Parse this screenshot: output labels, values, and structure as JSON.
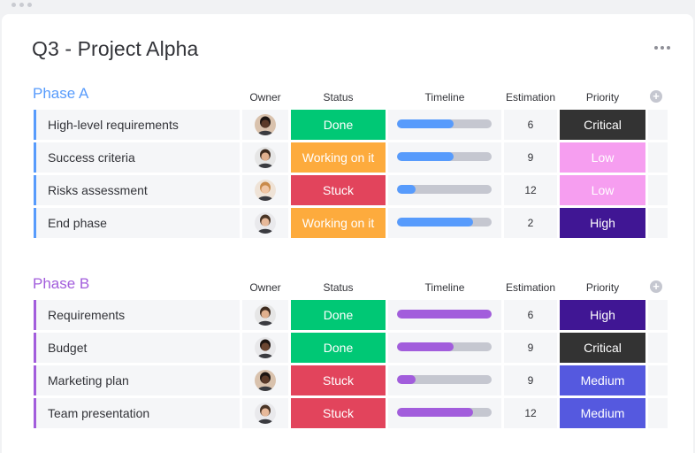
{
  "board": {
    "title": "Q3 - Project Alpha"
  },
  "columns": {
    "owner": "Owner",
    "status": "Status",
    "timeline": "Timeline",
    "estimation": "Estimation",
    "priority": "Priority"
  },
  "colors": {
    "done": "#00c875",
    "working": "#fdab3d",
    "stuck": "#e2445c",
    "critical": "#333333",
    "low": "#f69ef0",
    "high": "#401694",
    "medium": "#5559df",
    "phaseA": "#579bfc",
    "phaseB": "#a25ddc",
    "track": "#c5c7d0"
  },
  "groups": [
    {
      "title": "Phase A",
      "color": "#579bfc",
      "rows": [
        {
          "name": "High-level requirements",
          "owner_icon": "avatar-woman-curly-icon",
          "status": "Done",
          "status_color": "#00c875",
          "timeline_progress": 0.6,
          "estimation": "6",
          "priority": "Critical",
          "priority_color": "#333333",
          "priority_text_color": "#ffffff"
        },
        {
          "name": "Success criteria",
          "owner_icon": "avatar-man-beard-icon",
          "status": "Working on it",
          "status_color": "#fdab3d",
          "timeline_progress": 0.6,
          "estimation": "9",
          "priority": "Low",
          "priority_color": "#f69ef0",
          "priority_text_color": "#ffffff"
        },
        {
          "name": "Risks assessment",
          "owner_icon": "avatar-woman-blonde-icon",
          "status": "Stuck",
          "status_color": "#e2445c",
          "timeline_progress": 0.2,
          "estimation": "12",
          "priority": "Low",
          "priority_color": "#f69ef0",
          "priority_text_color": "#ffffff"
        },
        {
          "name": "End phase",
          "owner_icon": "avatar-man-glasses-icon",
          "status": "Working on it",
          "status_color": "#fdab3d",
          "timeline_progress": 0.8,
          "estimation": "2",
          "priority": "High",
          "priority_color": "#401694",
          "priority_text_color": "#ffffff"
        }
      ]
    },
    {
      "title": "Phase B",
      "color": "#a25ddc",
      "rows": [
        {
          "name": "Requirements",
          "owner_icon": "avatar-man-beard-icon",
          "status": "Done",
          "status_color": "#00c875",
          "timeline_progress": 1.0,
          "estimation": "6",
          "priority": "High",
          "priority_color": "#401694",
          "priority_text_color": "#ffffff"
        },
        {
          "name": "Budget",
          "owner_icon": "avatar-man-dark-icon",
          "status": "Done",
          "status_color": "#00c875",
          "timeline_progress": 0.6,
          "estimation": "9",
          "priority": "Critical",
          "priority_color": "#333333",
          "priority_text_color": "#ffffff"
        },
        {
          "name": "Marketing plan",
          "owner_icon": "avatar-woman-curly-icon",
          "status": "Stuck",
          "status_color": "#e2445c",
          "timeline_progress": 0.2,
          "estimation": "9",
          "priority": "Medium",
          "priority_color": "#5559df",
          "priority_text_color": "#ffffff"
        },
        {
          "name": "Team presentation",
          "owner_icon": "avatar-man-glasses-icon",
          "status": "Stuck",
          "status_color": "#e2445c",
          "timeline_progress": 0.8,
          "estimation": "12",
          "priority": "Medium",
          "priority_color": "#5559df",
          "priority_text_color": "#ffffff"
        }
      ]
    }
  ]
}
